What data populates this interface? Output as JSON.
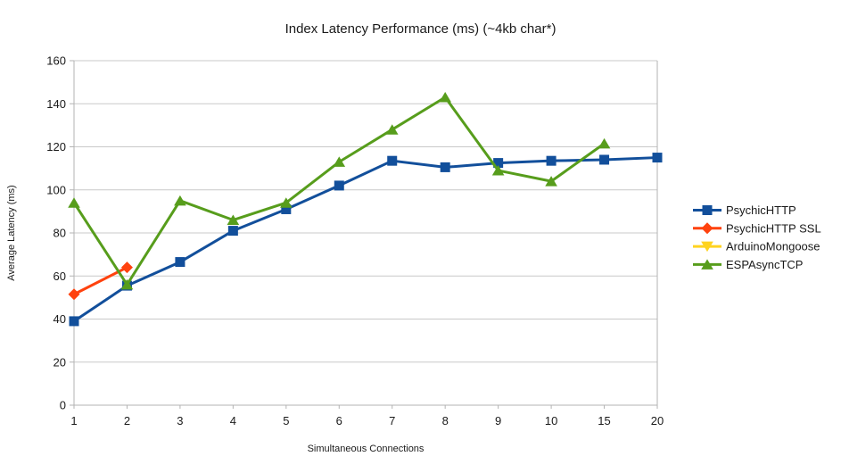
{
  "chart_data": {
    "type": "line",
    "title": "Index Latency Performance (ms) (~4kb char*)",
    "xlabel": "Simultaneous Connections",
    "ylabel": "Average Latency (ms)",
    "categories": [
      "1",
      "2",
      "3",
      "4",
      "5",
      "6",
      "7",
      "8",
      "9",
      "10",
      "15",
      "20"
    ],
    "ylim": [
      0,
      160
    ],
    "yticks": [
      0,
      20,
      40,
      60,
      80,
      100,
      120,
      140,
      160
    ],
    "grid": true,
    "legend_position": "right",
    "axis_color": "#b3b3b3",
    "grid_color": "#c9c9c9",
    "series": [
      {
        "name": "PsychicHTTP",
        "marker": "square",
        "color": "#124F9B",
        "values": [
          39,
          55.5,
          66.5,
          81,
          91,
          102,
          113.5,
          110.5,
          112.5,
          113.5,
          114,
          115
        ]
      },
      {
        "name": "PsychicHTTP SSL",
        "marker": "diamond",
        "color": "#FF420E",
        "values": [
          51.5,
          64,
          null,
          null,
          null,
          null,
          null,
          null,
          null,
          null,
          null,
          null
        ]
      },
      {
        "name": "ArduinoMongoose",
        "marker": "triangle-down",
        "color": "#FFD320",
        "values": [
          null,
          null,
          null,
          null,
          null,
          null,
          null,
          null,
          null,
          null,
          null,
          null
        ]
      },
      {
        "name": "ESPAsyncTCP",
        "marker": "triangle-up",
        "color": "#579D1C",
        "values": [
          94,
          56,
          95,
          86,
          94,
          113,
          128,
          143,
          109,
          104,
          121.5,
          null
        ]
      }
    ]
  }
}
